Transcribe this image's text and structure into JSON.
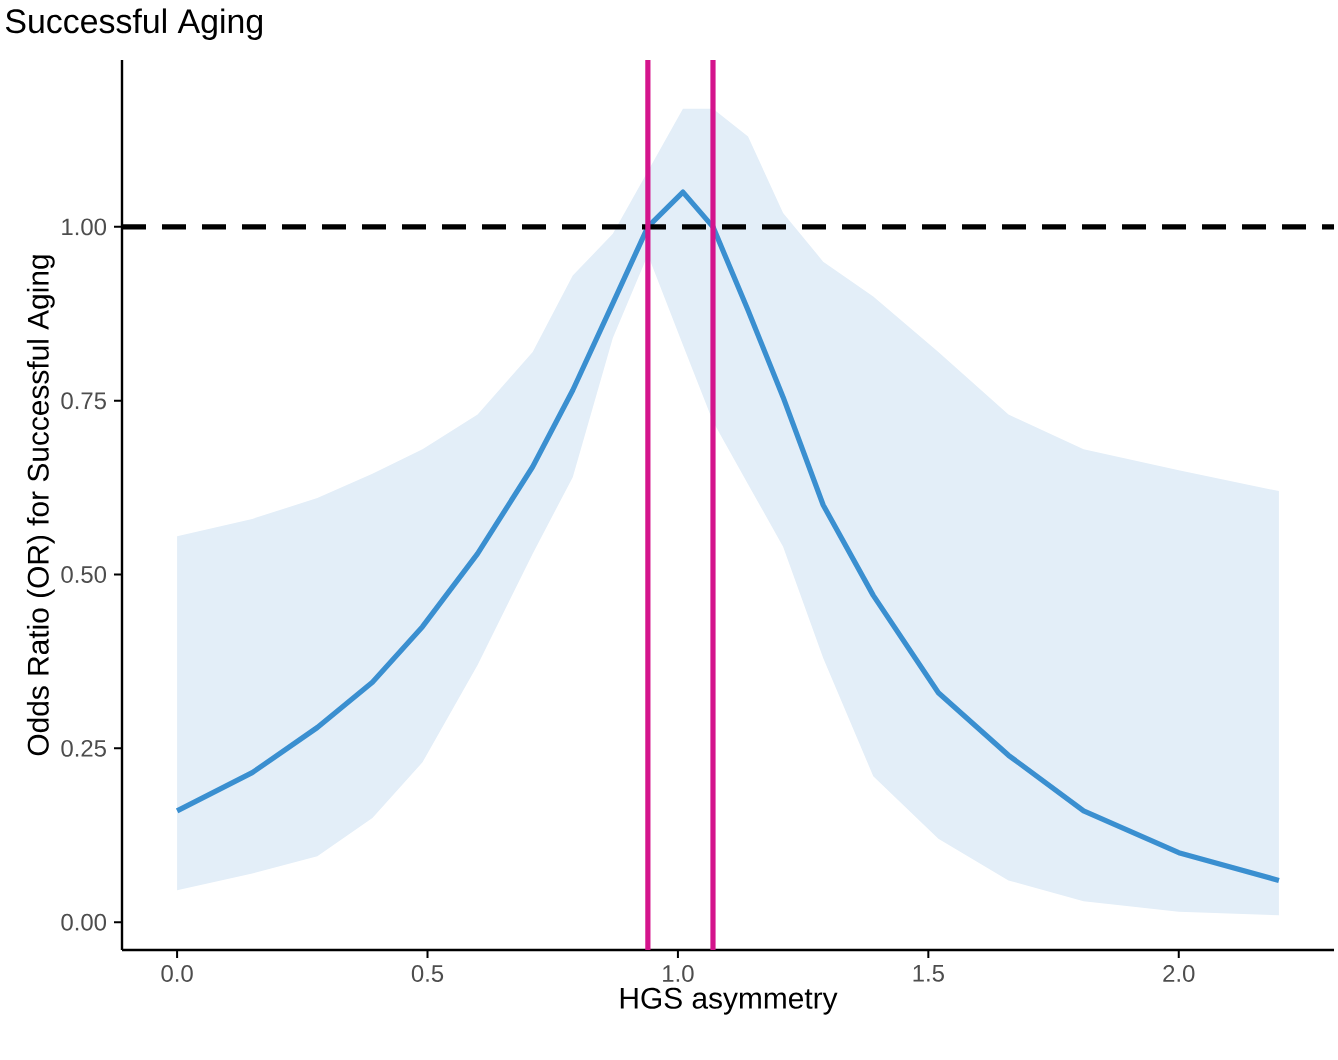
{
  "chart_data": {
    "type": "line",
    "title": "Successful Aging",
    "xlabel": "HGS asymmetry",
    "ylabel": "Odds Ratio (OR) for Successful Aging",
    "xlim": [
      -0.11,
      2.31
    ],
    "ylim": [
      -0.04,
      1.24
    ],
    "xticks": [
      {
        "value": 0,
        "label": "0.0"
      },
      0.5,
      {
        "value": 1,
        "label": "1.0"
      },
      1.5,
      {
        "value": 2,
        "label": "2.0"
      }
    ],
    "yticks": [
      {
        "value": 0,
        "label": "0.00"
      },
      0.25,
      {
        "value": 0.5,
        "label": "0.50"
      },
      0.75,
      {
        "value": 1,
        "label": "1.00"
      }
    ],
    "series": [
      {
        "color": "#3a8fd0",
        "line_style": "solid",
        "x": [
          0,
          0.15,
          0.28,
          0.39,
          0.49,
          0.6,
          0.71,
          0.79,
          0.87,
          0.94,
          1.01,
          1.07,
          1.14,
          1.21,
          1.29,
          1.39,
          1.52,
          1.66,
          1.81,
          2.0,
          2.2
        ],
        "values": [
          0.16,
          0.215,
          0.28,
          0.345,
          0.425,
          0.53,
          0.655,
          0.765,
          0.89,
          1.0,
          1.05,
          1.0,
          0.88,
          0.755,
          0.6,
          0.47,
          0.33,
          0.24,
          0.16,
          0.1,
          0.06
        ],
        "upper": [
          0.555,
          0.58,
          0.61,
          0.645,
          0.68,
          0.73,
          0.82,
          0.93,
          0.99,
          1.08,
          1.17,
          1.17,
          1.13,
          1.02,
          0.95,
          0.9,
          0.82,
          0.73,
          0.68,
          0.65,
          0.62
        ],
        "lower": [
          0.046,
          0.07,
          0.095,
          0.15,
          0.23,
          0.37,
          0.53,
          0.64,
          0.84,
          0.96,
          0.83,
          0.72,
          0.63,
          0.54,
          0.38,
          0.21,
          0.12,
          0.06,
          0.03,
          0.015,
          0.01
        ]
      }
    ],
    "ref_lines": [
      {
        "axis": "y",
        "value": 1,
        "color": "#000000",
        "line_style": "dashed"
      },
      {
        "axis": "x",
        "value": 0.94,
        "color": "#d4148c",
        "line_style": "solid"
      },
      {
        "axis": "x",
        "value": 1.07,
        "color": "#d4148c",
        "line_style": "solid"
      }
    ]
  }
}
